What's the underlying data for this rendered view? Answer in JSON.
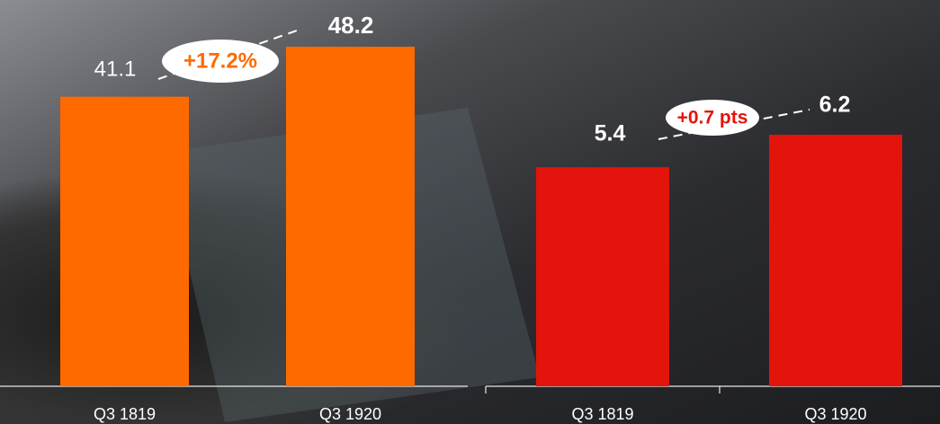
{
  "chart_data": [
    {
      "type": "bar",
      "categories": [
        "Q3 1819",
        "Q3 1920"
      ],
      "values": [
        41.1,
        48.2
      ],
      "color": "#ff6a00",
      "annotation": "+17.2%"
    },
    {
      "type": "bar",
      "categories": [
        "Q3 1819",
        "Q3 1920"
      ],
      "values": [
        5.4,
        6.2
      ],
      "color": "#e3140b",
      "annotation": "+0.7 pts"
    }
  ]
}
